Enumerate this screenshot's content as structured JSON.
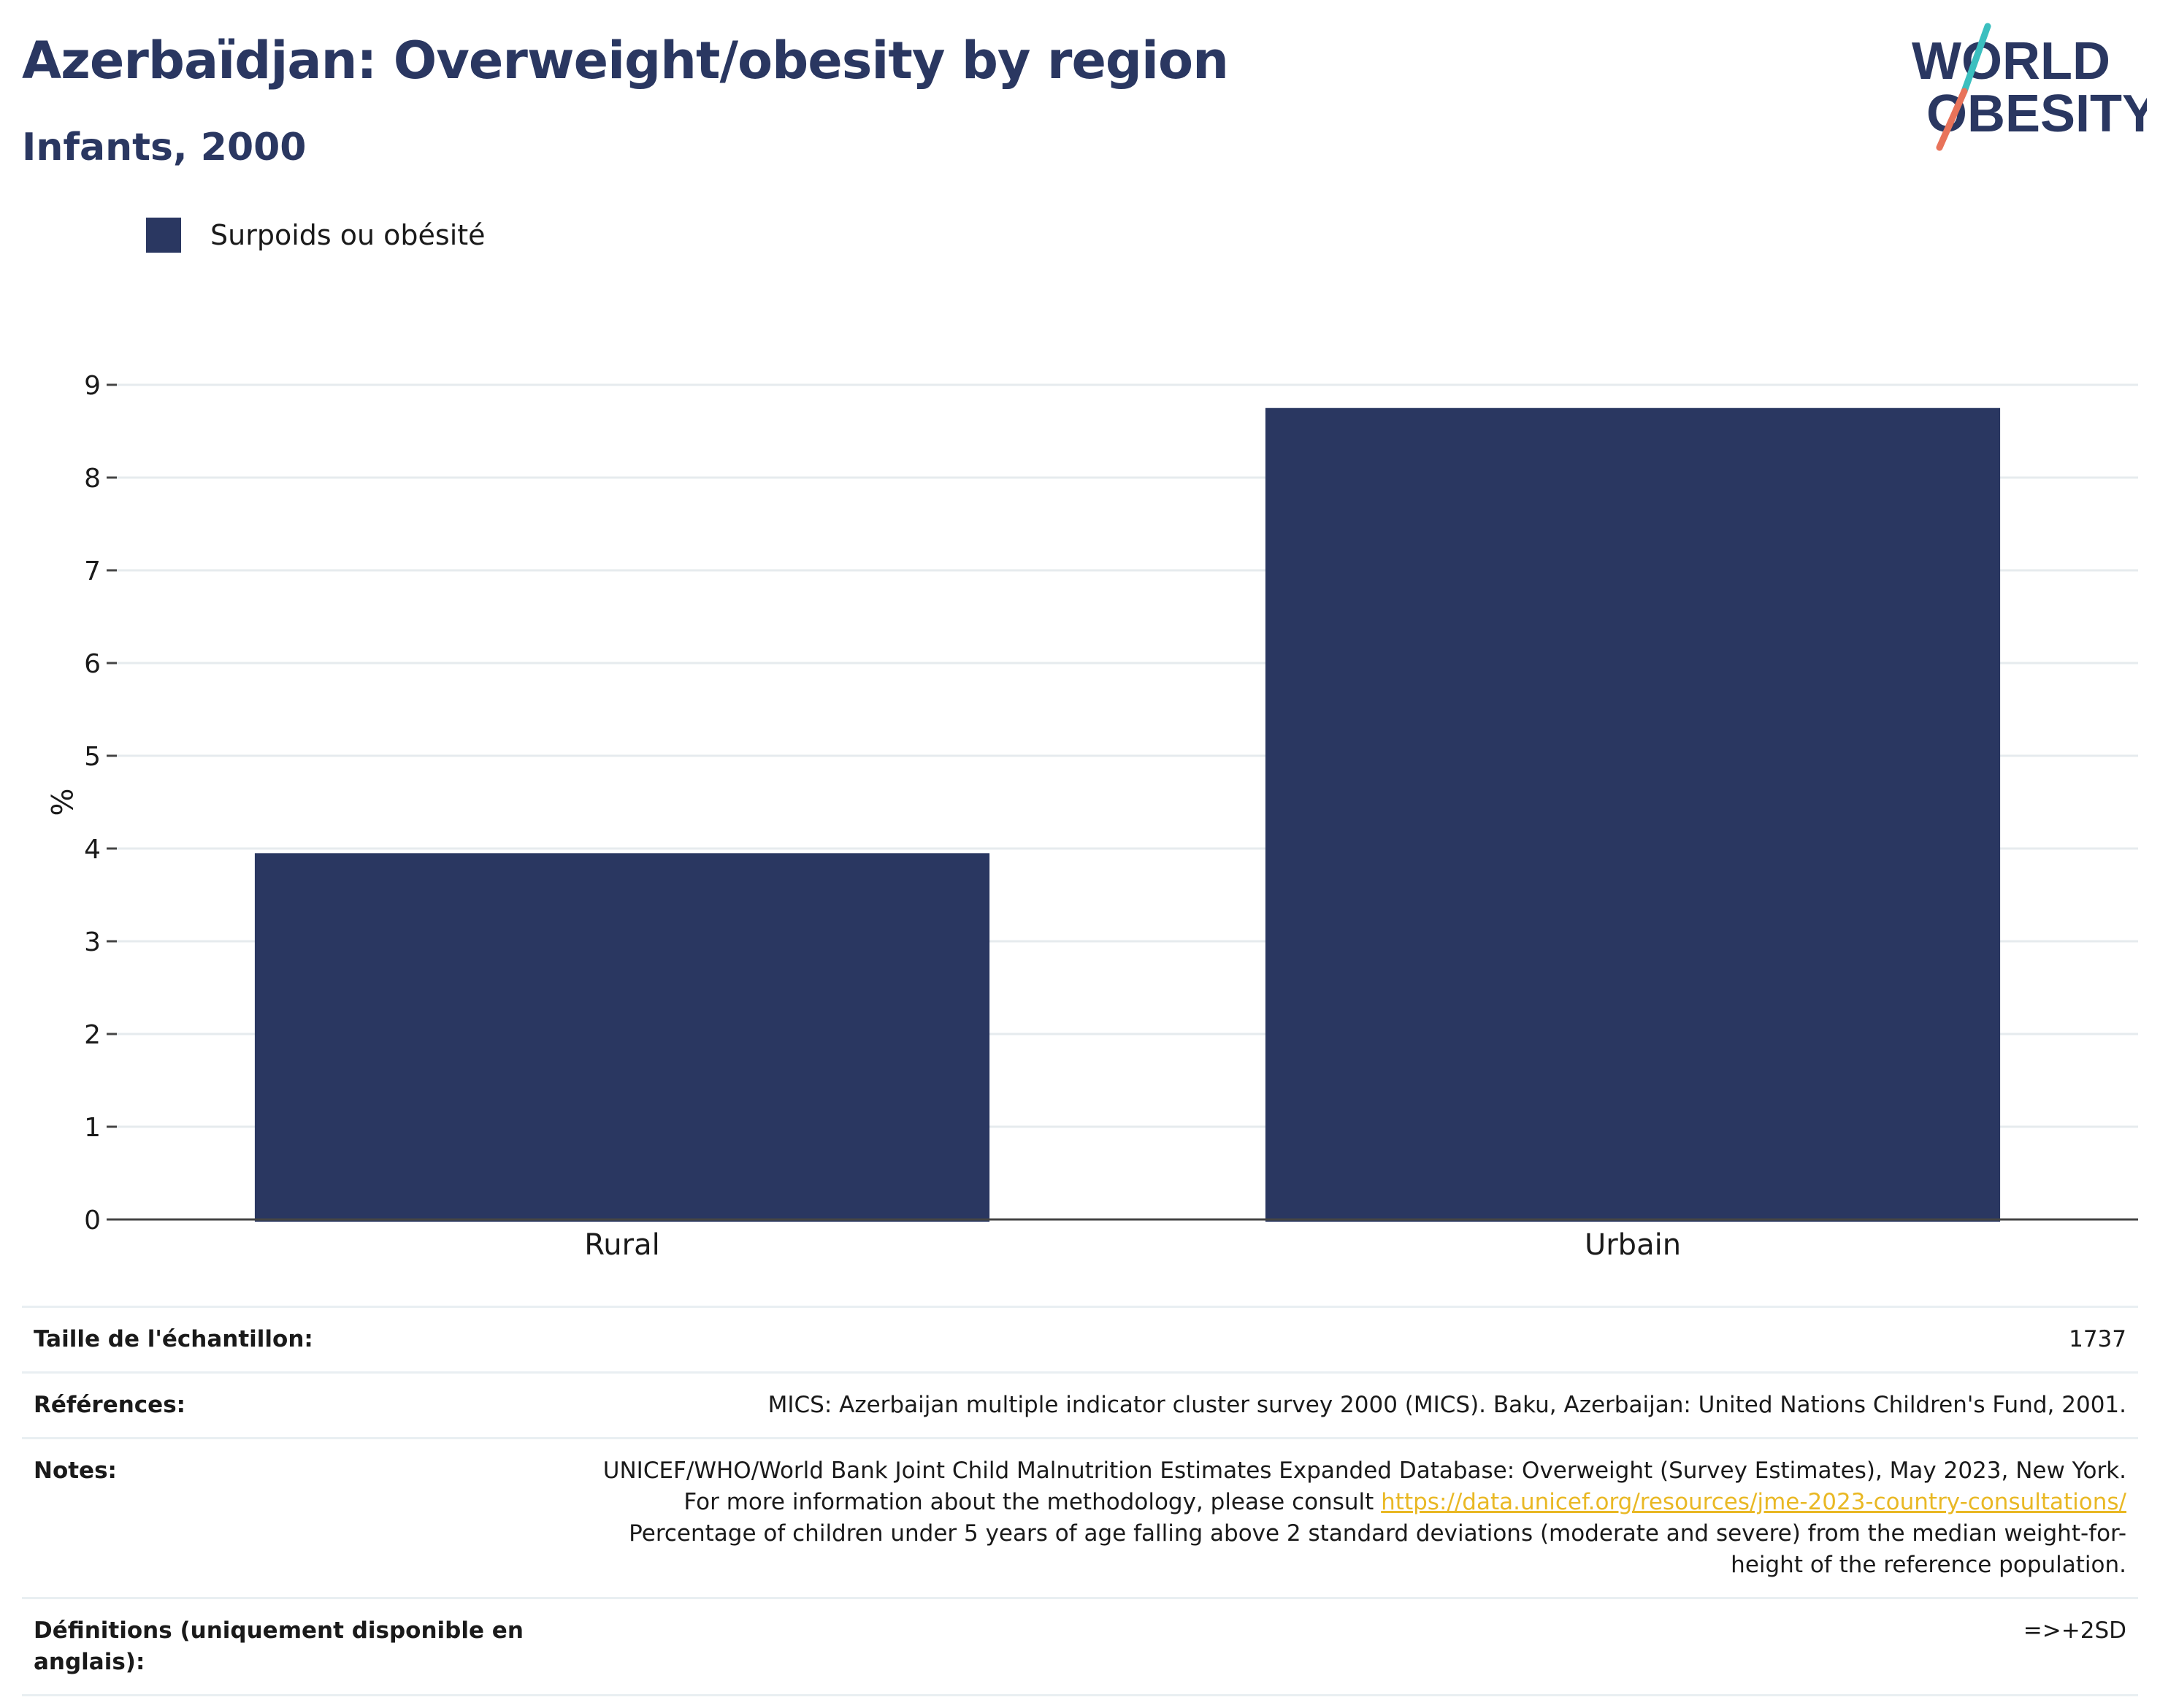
{
  "title": "Azerbaïdjan: Overweight/obesity by region",
  "subtitle": "Infants, 2000",
  "logo": {
    "line1": "WORLD",
    "line2": "OBESITY",
    "colors": {
      "text": "#2a3761",
      "teal": "#3bbfbf",
      "coral": "#e8735a"
    }
  },
  "legend": {
    "label": "Surpoids ou obésité",
    "color": "#2a3761"
  },
  "chart_data": {
    "type": "bar",
    "categories": [
      "Rural",
      "Urbain"
    ],
    "series": [
      {
        "name": "Surpoids ou obésité",
        "values": [
          3.95,
          8.75
        ]
      }
    ],
    "ylabel": "%",
    "xlabel": "",
    "ylim": [
      0,
      9
    ],
    "yticks": [
      0,
      1,
      2,
      3,
      4,
      5,
      6,
      7,
      8,
      9
    ],
    "grid": true,
    "legend_position": "top-left",
    "bar_color": "#2a3761"
  },
  "info": {
    "sample": {
      "label": "Taille de l'échantillon:",
      "value": "1737"
    },
    "references": {
      "label": "Références:",
      "value": "MICS: Azerbaijan multiple indicator cluster survey 2000 (MICS). Baku, Azerbaijan: United Nations Children's Fund, 2001."
    },
    "notes": {
      "label": "Notes:",
      "text1": "UNICEF/WHO/World Bank Joint Child Malnutrition Estimates Expanded Database: Overweight (Survey Estimates), May 2023, New York. For more information about the methodology, please consult ",
      "link": "https://data.unicef.org/resources/jme-2023-country-consultations/",
      "text2": "Percentage of children under 5 years of age falling above 2 standard deviations (moderate and severe) from the median weight-for-height of the reference population."
    },
    "definitions": {
      "label": "Définitions (uniquement disponible en anglais):",
      "value": "=>+2SD"
    }
  }
}
